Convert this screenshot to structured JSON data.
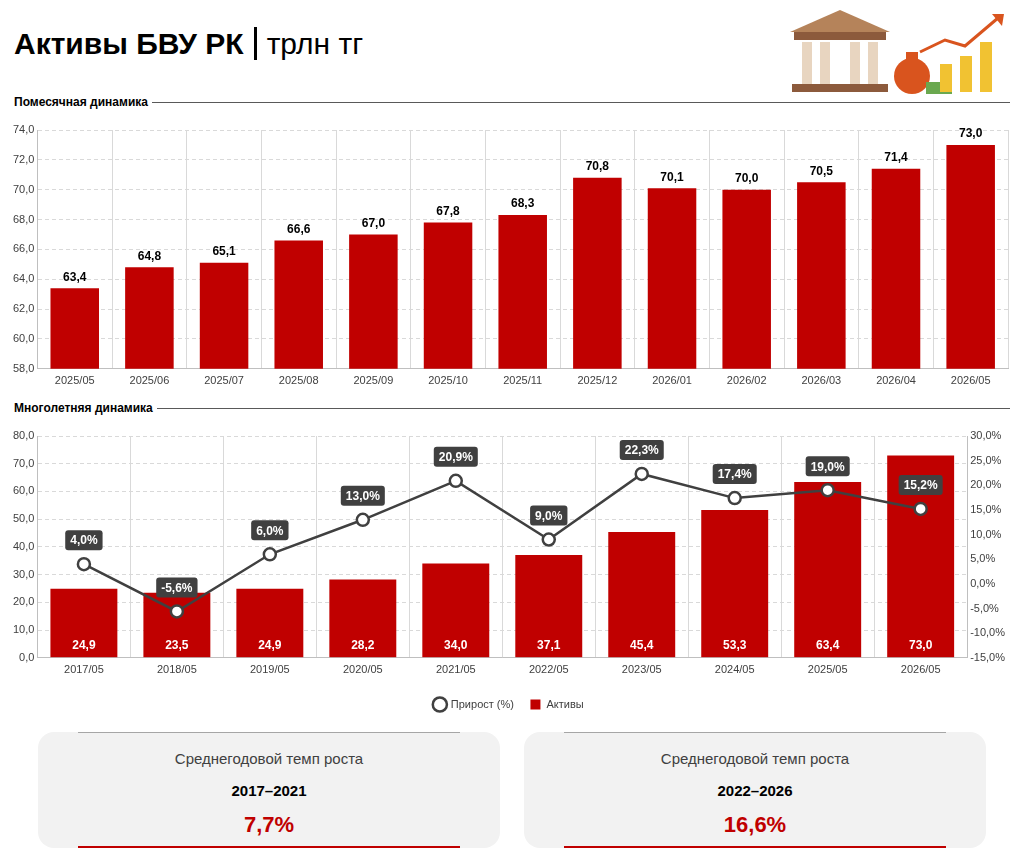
{
  "title": "Активы БВУ РК",
  "unit": "трлн тг",
  "chart_data": [
    {
      "type": "bar",
      "title": "Помесячная динамика",
      "categories": [
        "2025/05",
        "2025/06",
        "2025/07",
        "2025/08",
        "2025/09",
        "2025/10",
        "2025/11",
        "2025/12",
        "2026/01",
        "2026/02",
        "2026/03",
        "2026/04",
        "2026/05"
      ],
      "values": [
        63.4,
        64.8,
        65.1,
        66.6,
        67.0,
        67.8,
        68.3,
        70.8,
        70.1,
        70.0,
        70.5,
        71.4,
        73.0
      ],
      "value_labels": [
        "63,4",
        "64,8",
        "65,1",
        "66,6",
        "67,0",
        "67,8",
        "68,3",
        "70,8",
        "70,1",
        "70,0",
        "70,5",
        "71,4",
        "73,0"
      ],
      "color": "#c00000",
      "ylim": [
        58,
        74
      ],
      "yticks": [
        {
          "value": 58,
          "label": "58,0"
        },
        {
          "value": 60,
          "label": "60,0"
        },
        {
          "value": 62,
          "label": "62,0"
        },
        {
          "value": 64,
          "label": "64,0"
        },
        {
          "value": 66,
          "label": "66,0"
        },
        {
          "value": 68,
          "label": "68,0"
        },
        {
          "value": 70,
          "label": "70,0"
        },
        {
          "value": 72,
          "label": "72,0"
        },
        {
          "value": 74,
          "label": "74,0"
        }
      ],
      "grid": true,
      "data_labels": true
    },
    {
      "type": "bar",
      "title": "Многолетняя динамика",
      "categories": [
        "2017/05",
        "2018/05",
        "2019/05",
        "2020/05",
        "2021/05",
        "2022/05",
        "2023/05",
        "2024/05",
        "2025/05",
        "2026/05"
      ],
      "series": [
        {
          "name": "Активы",
          "type": "bar",
          "color": "#c00000",
          "values": [
            24.9,
            23.5,
            24.9,
            28.2,
            34.0,
            37.1,
            45.4,
            53.3,
            63.4,
            73.0
          ],
          "value_labels": [
            "24,9",
            "23,5",
            "24,9",
            "28,2",
            "34,0",
            "37,1",
            "45,4",
            "53,3",
            "63,4",
            "73,0"
          ]
        },
        {
          "name": "Прирост (%)",
          "type": "line",
          "axis": "y2",
          "color": "#404040",
          "marker": "circle",
          "values": [
            4.0,
            -5.6,
            6.0,
            13.0,
            20.9,
            9.0,
            22.3,
            17.4,
            19.0,
            15.2
          ],
          "value_labels": [
            "4,0%",
            "-5,6%",
            "6,0%",
            "13,0%",
            "20,9%",
            "9,0%",
            "22,3%",
            "17,4%",
            "19,0%",
            "15,2%"
          ]
        }
      ],
      "ylim": [
        0,
        80
      ],
      "yticks": [
        {
          "value": 0,
          "label": "0,0"
        },
        {
          "value": 10,
          "label": "10,0"
        },
        {
          "value": 20,
          "label": "20,0"
        },
        {
          "value": 30,
          "label": "30,0"
        },
        {
          "value": 40,
          "label": "40,0"
        },
        {
          "value": 50,
          "label": "50,0"
        },
        {
          "value": 60,
          "label": "60,0"
        },
        {
          "value": 70,
          "label": "70,0"
        },
        {
          "value": 80,
          "label": "80,0"
        }
      ],
      "y2lim": [
        -15,
        30
      ],
      "y2ticks": [
        {
          "value": -15,
          "label": "-15,0%"
        },
        {
          "value": -10,
          "label": "-10,0%"
        },
        {
          "value": -5,
          "label": "-5,0%"
        },
        {
          "value": 0,
          "label": "0,0%"
        },
        {
          "value": 5,
          "label": "5,0%"
        },
        {
          "value": 10,
          "label": "10,0%"
        },
        {
          "value": 15,
          "label": "15,0%"
        },
        {
          "value": 20,
          "label": "20,0%"
        },
        {
          "value": 25,
          "label": "25,0%"
        },
        {
          "value": 30,
          "label": "30,0%"
        }
      ],
      "grid": true,
      "data_labels": true,
      "legend": "bottom"
    }
  ],
  "cards": [
    {
      "title": "Среднегодовой темп роста",
      "period": "2017–2021",
      "value": "7,7%"
    },
    {
      "title": "Среднегодовой темп роста",
      "period": "2022–2026",
      "value": "16,6%"
    }
  ]
}
